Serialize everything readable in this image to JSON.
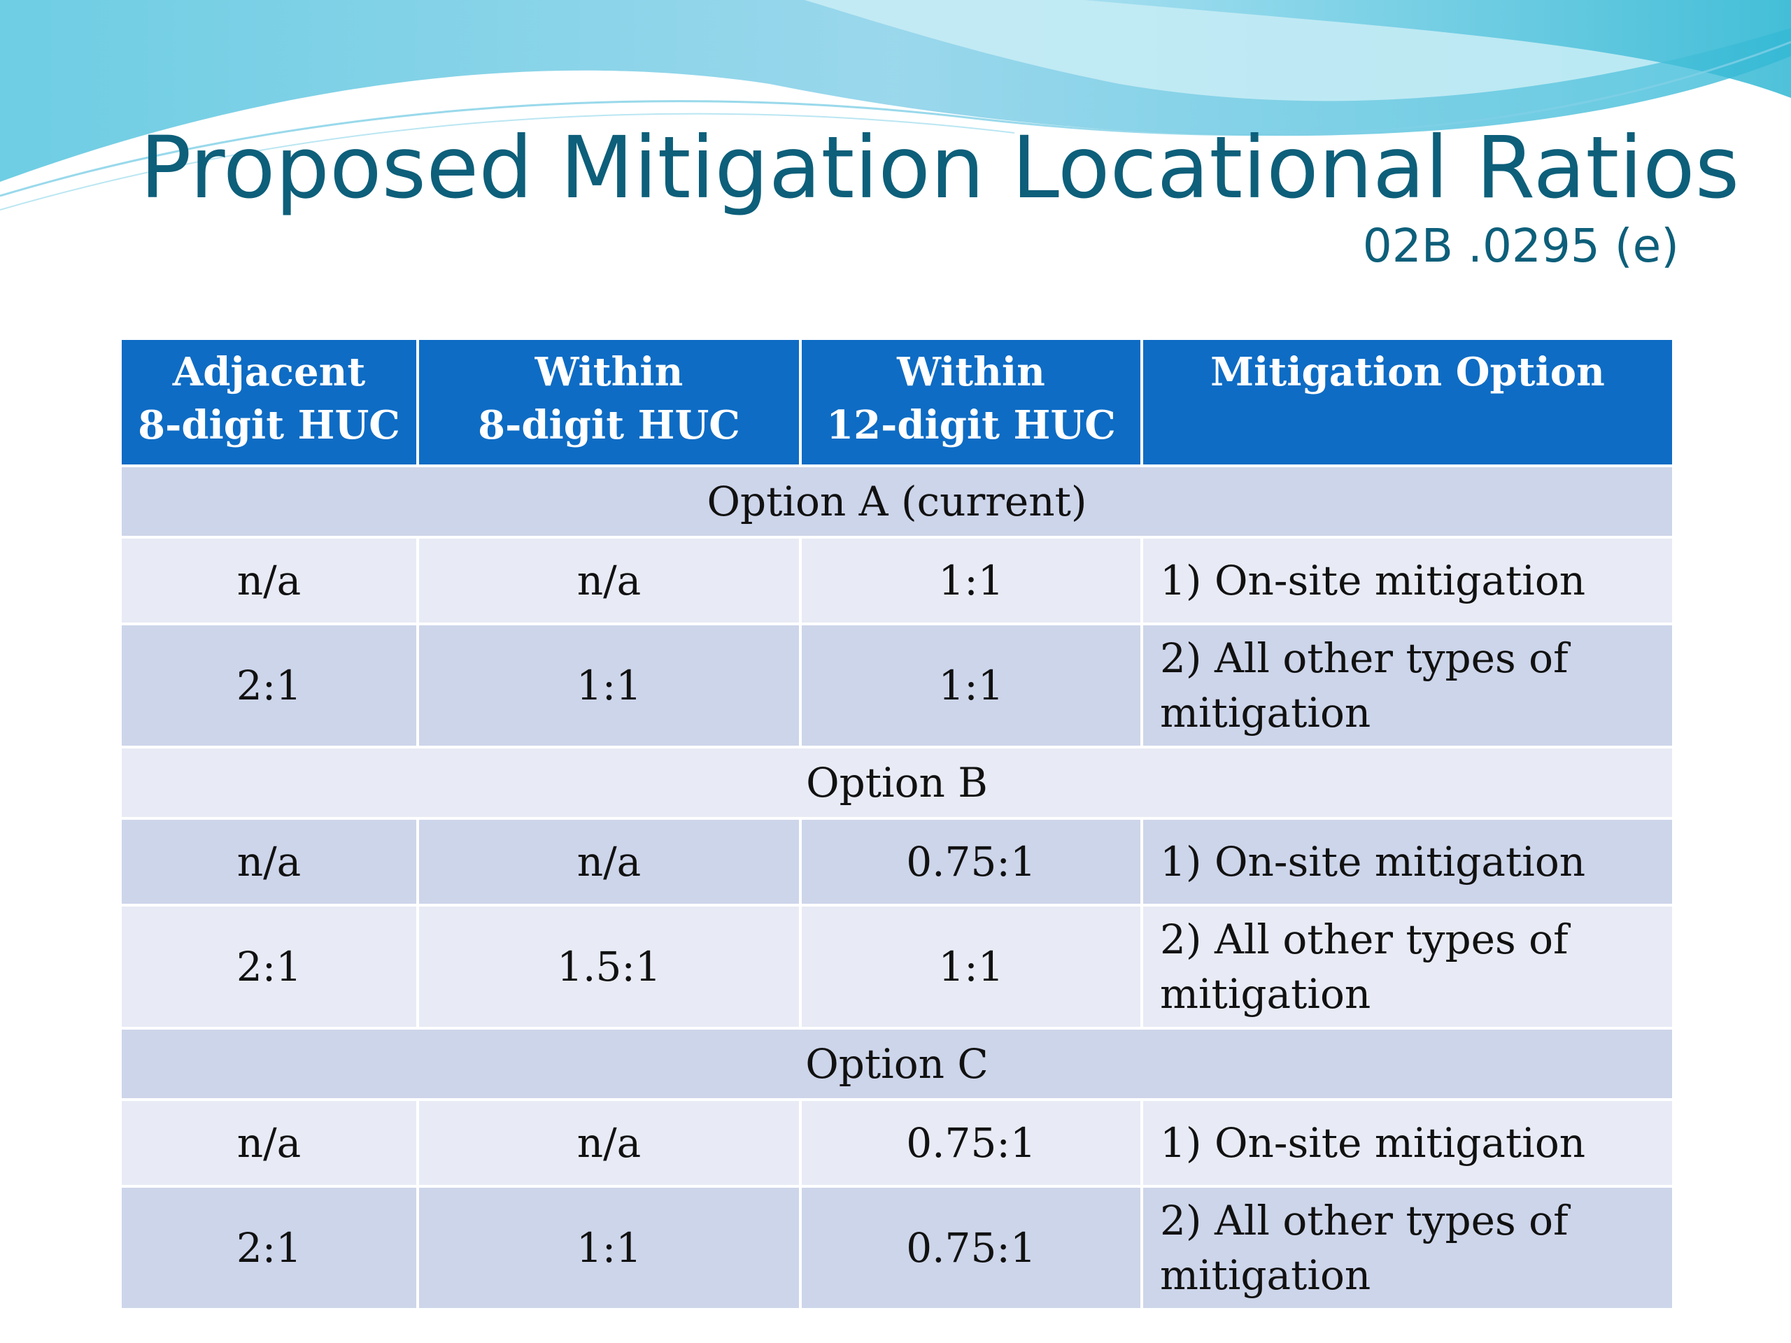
{
  "title": "Proposed Mitigation Locational Ratios",
  "subtitle": "02B .0295 (e)",
  "table": {
    "headers": [
      {
        "line1": "Adjacent",
        "line2": "8-digit HUC"
      },
      {
        "line1": "Within",
        "line2": "8-digit HUC"
      },
      {
        "line1": "Within",
        "line2": "12-digit HUC"
      },
      {
        "line1": "Mitigation Option",
        "line2": ""
      }
    ],
    "sections": [
      {
        "label": "Option A (current)",
        "rows": [
          {
            "adjacent_8": "n/a",
            "within_8": "n/a",
            "within_12": "1:1",
            "option": "1) On-site mitigation"
          },
          {
            "adjacent_8": "2:1",
            "within_8": "1:1",
            "within_12": "1:1",
            "option": "2) All other types of mitigation"
          }
        ]
      },
      {
        "label": "Option B",
        "rows": [
          {
            "adjacent_8": "n/a",
            "within_8": "n/a",
            "within_12": "0.75:1",
            "option": "1) On-site mitigation"
          },
          {
            "adjacent_8": "2:1",
            "within_8": "1.5:1",
            "within_12": "1:1",
            "option": "2) All other types of mitigation"
          }
        ]
      },
      {
        "label": "Option C",
        "highlight_color": "#ee1111",
        "rows": [
          {
            "adjacent_8": "n/a",
            "within_8": "n/a",
            "within_12": "0.75:1",
            "option": "1) On-site mitigation"
          },
          {
            "adjacent_8": "2:1",
            "within_8": "1:1",
            "within_12": "0.75:1",
            "option": "2) All other types of mitigation"
          }
        ]
      }
    ]
  },
  "colors": {
    "title": "#0d5f7a",
    "header_bg": "#0e6cc4",
    "row_dark": "#cdd5ea",
    "row_light": "#e8ebf5",
    "highlight": "#ee1111"
  }
}
